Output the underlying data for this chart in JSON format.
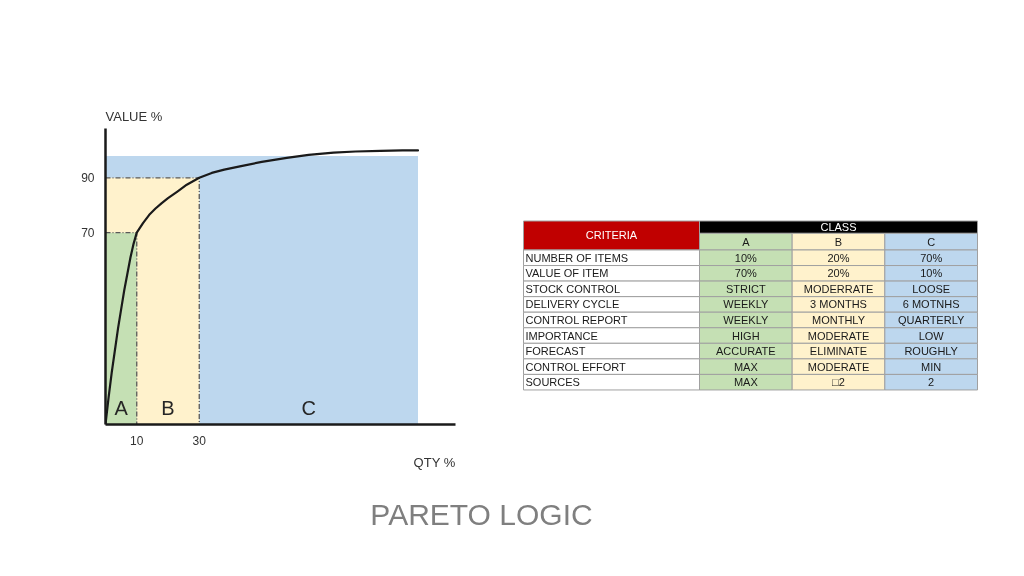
{
  "chart_data": [
    {
      "type": "line",
      "title": "PARETO LOGIC",
      "xlabel": "QTY %",
      "ylabel": "VALUE %",
      "xlim": [
        0,
        112
      ],
      "ylim": [
        0,
        108
      ],
      "xticks": [
        10,
        30
      ],
      "yticks": [
        70,
        90
      ],
      "series": [
        {
          "type": "area",
          "name": "C",
          "color": "#bdd7ee",
          "x": [
            0,
            100
          ],
          "values": [
            98,
            98
          ]
        },
        {
          "type": "area",
          "name": "B",
          "color": "#fff2cc",
          "x": [
            0,
            30
          ],
          "values": [
            90,
            90
          ],
          "line_style": "dashed"
        },
        {
          "type": "area",
          "name": "A",
          "color": "#c5e0b4",
          "x": [
            0,
            10
          ],
          "values": [
            70,
            70
          ],
          "line_style": "dashed"
        },
        {
          "type": "line",
          "color": "#1a1a1a",
          "x": [
            0,
            1,
            2,
            3,
            4,
            5,
            6,
            7,
            8,
            9,
            10,
            12,
            14,
            16,
            18,
            20,
            23,
            26,
            30,
            34,
            38,
            43,
            50,
            58,
            65,
            73,
            80,
            88,
            95,
            100
          ],
          "values": [
            0,
            10,
            19,
            27,
            35,
            42,
            49,
            55,
            61,
            66,
            70,
            73.5,
            76.5,
            78.8,
            80.8,
            82.6,
            85,
            87.5,
            90,
            91.8,
            93,
            94.2,
            95.8,
            97.3,
            98.4,
            99.2,
            99.6,
            99.8,
            100,
            100
          ]
        }
      ]
    },
    {
      "type": "other",
      "xlabel": "CLASS",
      "ylabel": "CRITERIA",
      "categories": [
        "A",
        "B",
        "C"
      ],
      "colors": [
        "#c5e0b4",
        "#fff2cc",
        "#bdd7ee"
      ],
      "y_categories": [
        "NUMBER OF ITEMS",
        "VALUE OF ITEM",
        "STOCK CONTROL",
        "DELIVERY CYCLE",
        "CONTROL REPORT",
        "IMPORTANCE",
        "FORECAST",
        "CONTROL EFFORT",
        "SOURCES"
      ],
      "cell_labels": [
        [
          "10%",
          "20%",
          "70%"
        ],
        [
          "70%",
          "20%",
          "10%"
        ],
        [
          "STRICT",
          "MODERRATE",
          "LOOSE"
        ],
        [
          "WEEKLY",
          "3 MONTHS",
          "6 MOTNHS"
        ],
        [
          "WEEKLY",
          "MONTHLY",
          "QUARTERLY"
        ],
        [
          "HIGH",
          "MODERATE",
          "LOW"
        ],
        [
          "ACCURATE",
          "ELIMINATE",
          "ROUGHLY"
        ],
        [
          "MAX",
          "MODERATE",
          "MIN"
        ],
        [
          "MAX",
          "□2",
          "2"
        ]
      ]
    }
  ]
}
